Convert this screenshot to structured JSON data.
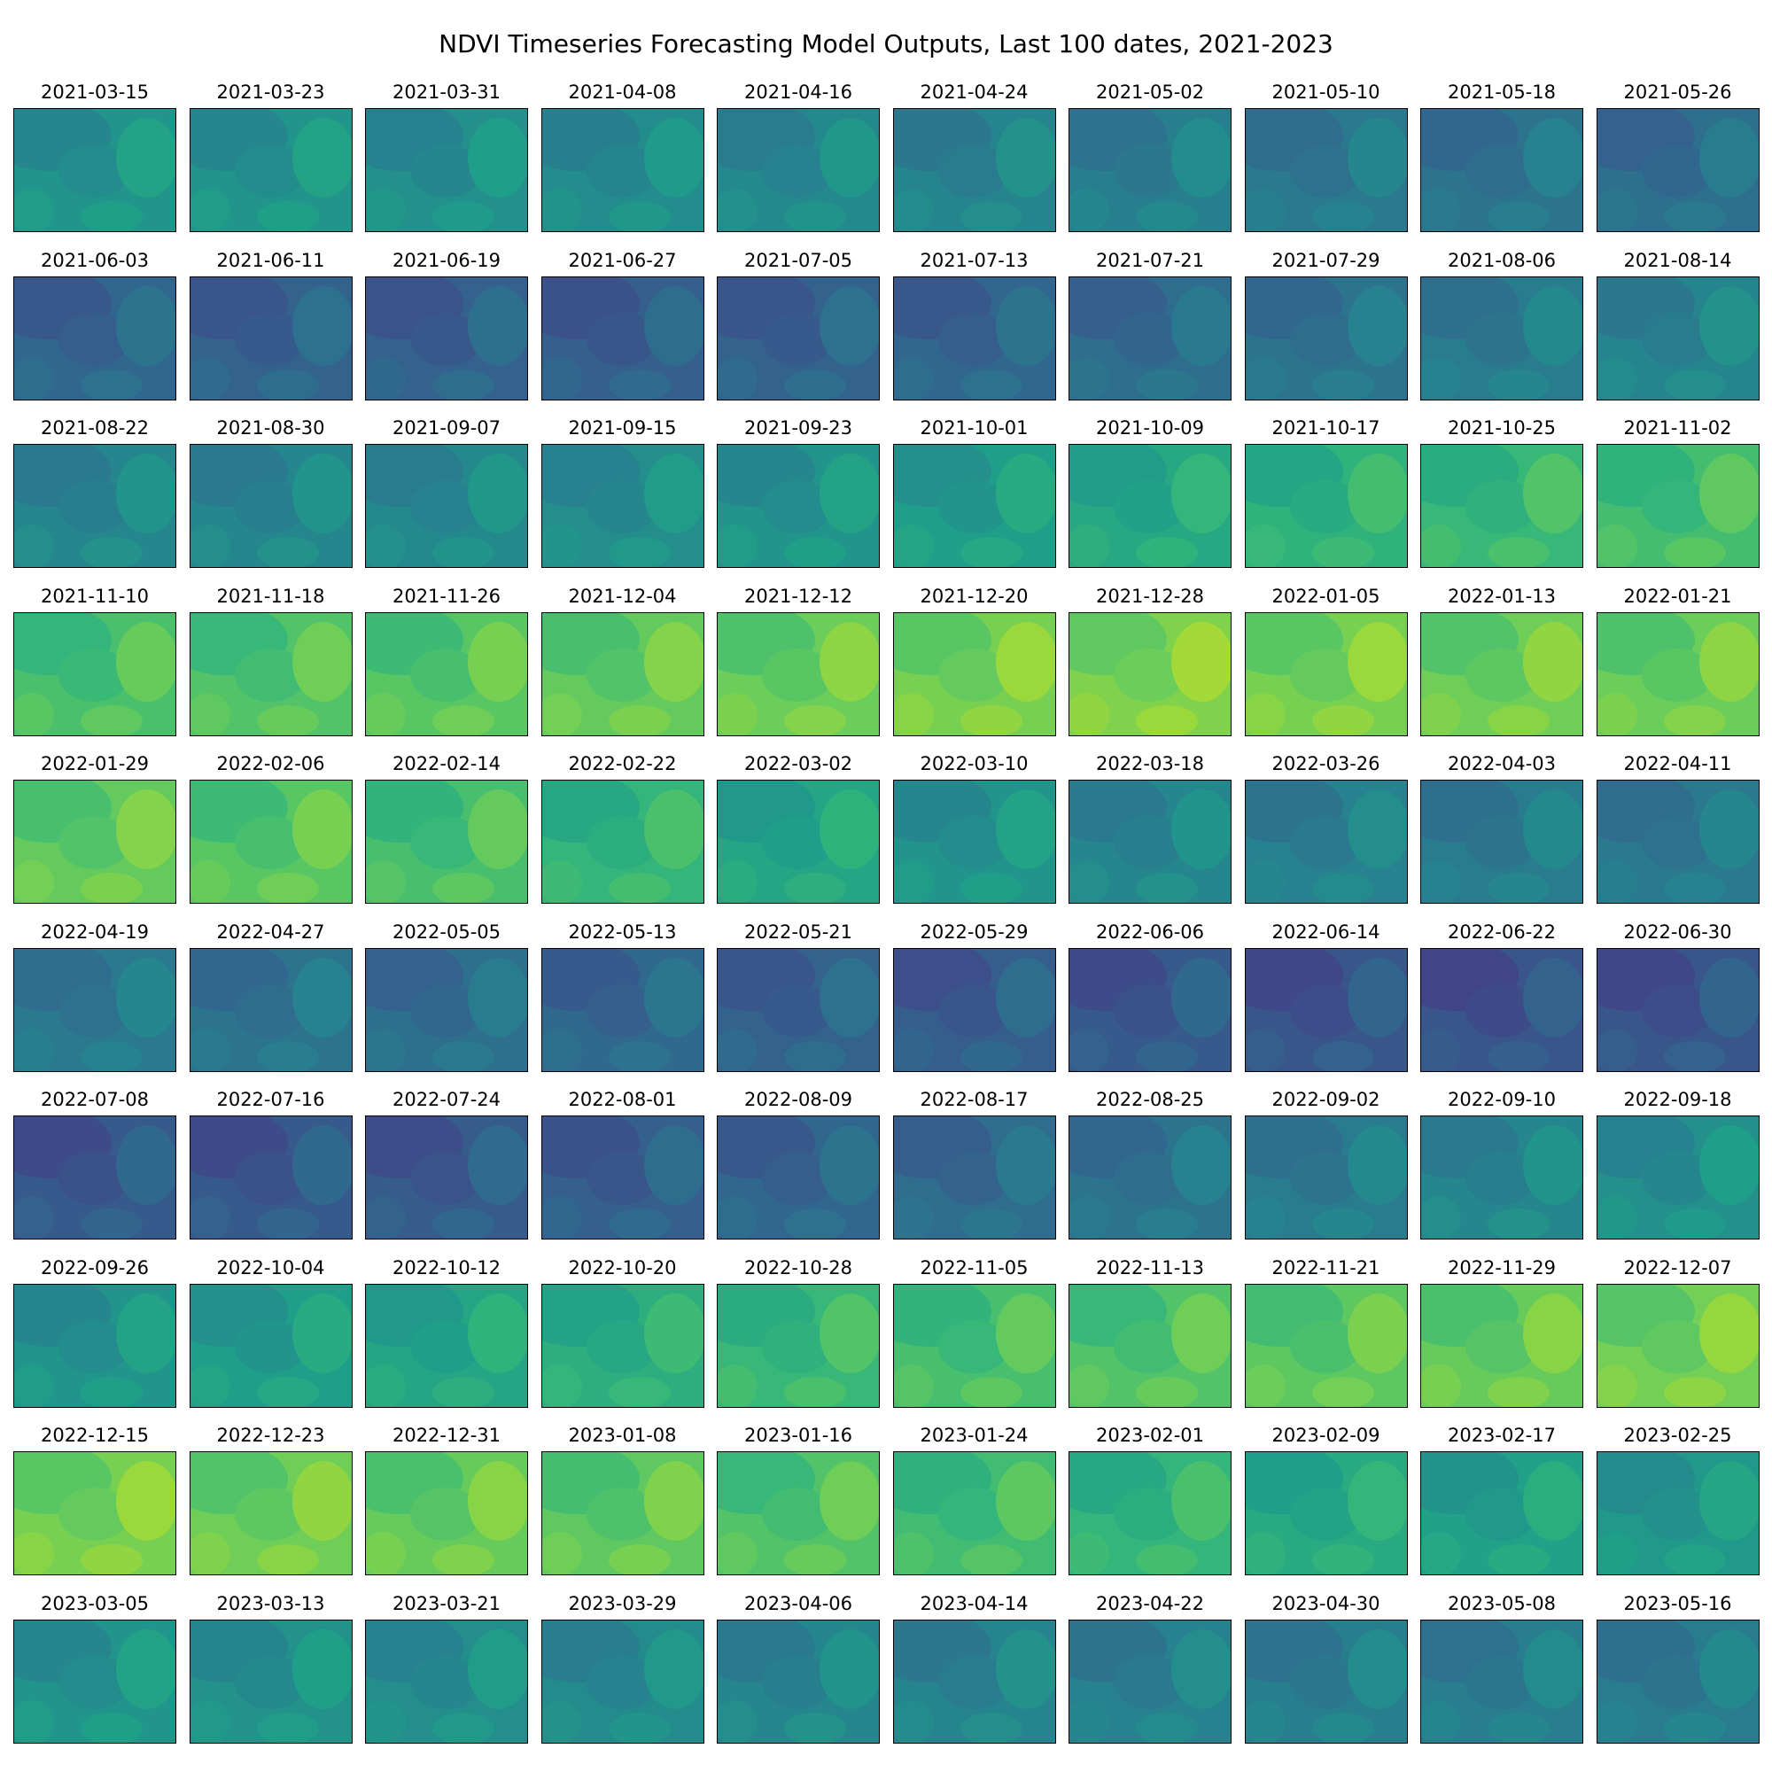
{
  "chart_data": {
    "type": "heatmap",
    "title": "NDVI Timeseries Forecasting Model Outputs, Last 100 dates, 2021-2023",
    "colormap": "viridis",
    "grid": {
      "rows": 10,
      "cols": 10
    },
    "dates": [
      "2021-03-15",
      "2021-03-23",
      "2021-03-31",
      "2021-04-08",
      "2021-04-16",
      "2021-04-24",
      "2021-05-02",
      "2021-05-10",
      "2021-05-18",
      "2021-05-26",
      "2021-06-03",
      "2021-06-11",
      "2021-06-19",
      "2021-06-27",
      "2021-07-05",
      "2021-07-13",
      "2021-07-21",
      "2021-07-29",
      "2021-08-06",
      "2021-08-14",
      "2021-08-22",
      "2021-08-30",
      "2021-09-07",
      "2021-09-15",
      "2021-09-23",
      "2021-10-01",
      "2021-10-09",
      "2021-10-17",
      "2021-10-25",
      "2021-11-02",
      "2021-11-10",
      "2021-11-18",
      "2021-11-26",
      "2021-12-04",
      "2021-12-12",
      "2021-12-20",
      "2021-12-28",
      "2022-01-05",
      "2022-01-13",
      "2022-01-21",
      "2022-01-29",
      "2022-02-06",
      "2022-02-14",
      "2022-02-22",
      "2022-03-02",
      "2022-03-10",
      "2022-03-18",
      "2022-03-26",
      "2022-04-03",
      "2022-04-11",
      "2022-04-19",
      "2022-04-27",
      "2022-05-05",
      "2022-05-13",
      "2022-05-21",
      "2022-05-29",
      "2022-06-06",
      "2022-06-14",
      "2022-06-22",
      "2022-06-30",
      "2022-07-08",
      "2022-07-16",
      "2022-07-24",
      "2022-08-01",
      "2022-08-09",
      "2022-08-17",
      "2022-08-25",
      "2022-09-02",
      "2022-09-10",
      "2022-09-18",
      "2022-09-26",
      "2022-10-04",
      "2022-10-12",
      "2022-10-20",
      "2022-10-28",
      "2022-11-05",
      "2022-11-13",
      "2022-11-21",
      "2022-11-29",
      "2022-12-07",
      "2022-12-15",
      "2022-12-23",
      "2022-12-31",
      "2023-01-08",
      "2023-01-16",
      "2023-01-24",
      "2023-02-01",
      "2023-02-09",
      "2023-02-17",
      "2023-02-25",
      "2023-03-05",
      "2023-03-13",
      "2023-03-21",
      "2023-03-29",
      "2023-04-06",
      "2023-04-14",
      "2023-04-22",
      "2023-04-30",
      "2023-05-08",
      "2023-05-16"
    ],
    "levels": [
      0.5,
      0.5,
      0.47,
      0.45,
      0.43,
      0.4,
      0.37,
      0.33,
      0.3,
      0.27,
      0.22,
      0.2,
      0.19,
      0.18,
      0.2,
      0.22,
      0.26,
      0.3,
      0.35,
      0.4,
      0.42,
      0.42,
      0.43,
      0.46,
      0.5,
      0.55,
      0.62,
      0.68,
      0.72,
      0.76,
      0.78,
      0.8,
      0.82,
      0.85,
      0.87,
      0.9,
      0.92,
      0.9,
      0.88,
      0.87,
      0.85,
      0.82,
      0.77,
      0.7,
      0.6,
      0.5,
      0.42,
      0.38,
      0.35,
      0.33,
      0.33,
      0.3,
      0.27,
      0.23,
      0.2,
      0.17,
      0.15,
      0.13,
      0.12,
      0.13,
      0.15,
      0.15,
      0.16,
      0.18,
      0.22,
      0.25,
      0.3,
      0.35,
      0.42,
      0.47,
      0.5,
      0.55,
      0.6,
      0.66,
      0.72,
      0.77,
      0.8,
      0.83,
      0.86,
      0.89,
      0.9,
      0.88,
      0.86,
      0.84,
      0.8,
      0.75,
      0.7,
      0.63,
      0.57,
      0.52,
      0.5,
      0.48,
      0.46,
      0.44,
      0.42,
      0.4,
      0.38,
      0.37,
      0.36,
      0.35
    ]
  }
}
